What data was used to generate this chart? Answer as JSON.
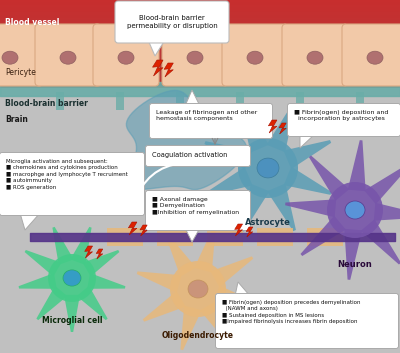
{
  "labels": {
    "blood_vessel": "Blood vessel",
    "pericyte": "Pericyte",
    "bbb": "Blood-brain barrier",
    "brain": "Brain",
    "bbb_callout": "Blood-brain barrier\npermeability or disruption",
    "leakage": "Leakage of fibrinogen and other\nhemostasis components",
    "coagulation": "Coagulation activation",
    "astrocyte_callout": "■ Fibrin(ogen) deposition and\n  incorporation by astrocytes",
    "astrocyte": "Astrocyte",
    "neuron": "Neuron",
    "microglia_box": "Microglia activation and subsequent:\n■ chemokines and cytokines production\n■ macrophge and lymphocyte T recruiment\n■ autoimmunity\n■ ROS generation",
    "axonal_box": "■ Axonal damage\n■ Demyelination\n■Inhibition of remyelination",
    "microglia_cell": "Microglial cell",
    "oligodendrocyte": "Oligodendrocyte",
    "fibrinogen_box": "■ Fibrin(ogen) deposition precedes demyelination\n  (NAWM and axons)\n■ Sustained deposition in MS lesions\n■Impaired fibrinolysis increases fibrin deposition"
  },
  "colors": {
    "bg_top": "#c93535",
    "bg_bottom": "#c8c8c8",
    "cell_fill": "#f2c9a8",
    "cell_border": "#d9a882",
    "nucleus": "#b07070",
    "bbb_band": "#6aada8",
    "astrocyte": "#5a9db5",
    "astrocyte_dark": "#3a7a98",
    "astrocyte_nucleus": "#4a90c0",
    "microglia": "#44cc88",
    "microglia_dark": "#22aa66",
    "microglia_nucleus": "#3399cc",
    "oligodendrocyte": "#e8b87a",
    "oligodendrocyte_nucleus": "#c8907a",
    "neuron": "#7755aa",
    "neuron_dark": "#553388",
    "neuron_nucleus": "#5599dd",
    "axon_bar": "#553388",
    "axon_myelin": "#e8b87a",
    "red_bolt": "#cc2200",
    "white": "#ffffff",
    "callout_border": "#aaaaaa",
    "text": "#222222",
    "teal_arrow": "#5599aa",
    "white_arrow": "#dddddd"
  }
}
